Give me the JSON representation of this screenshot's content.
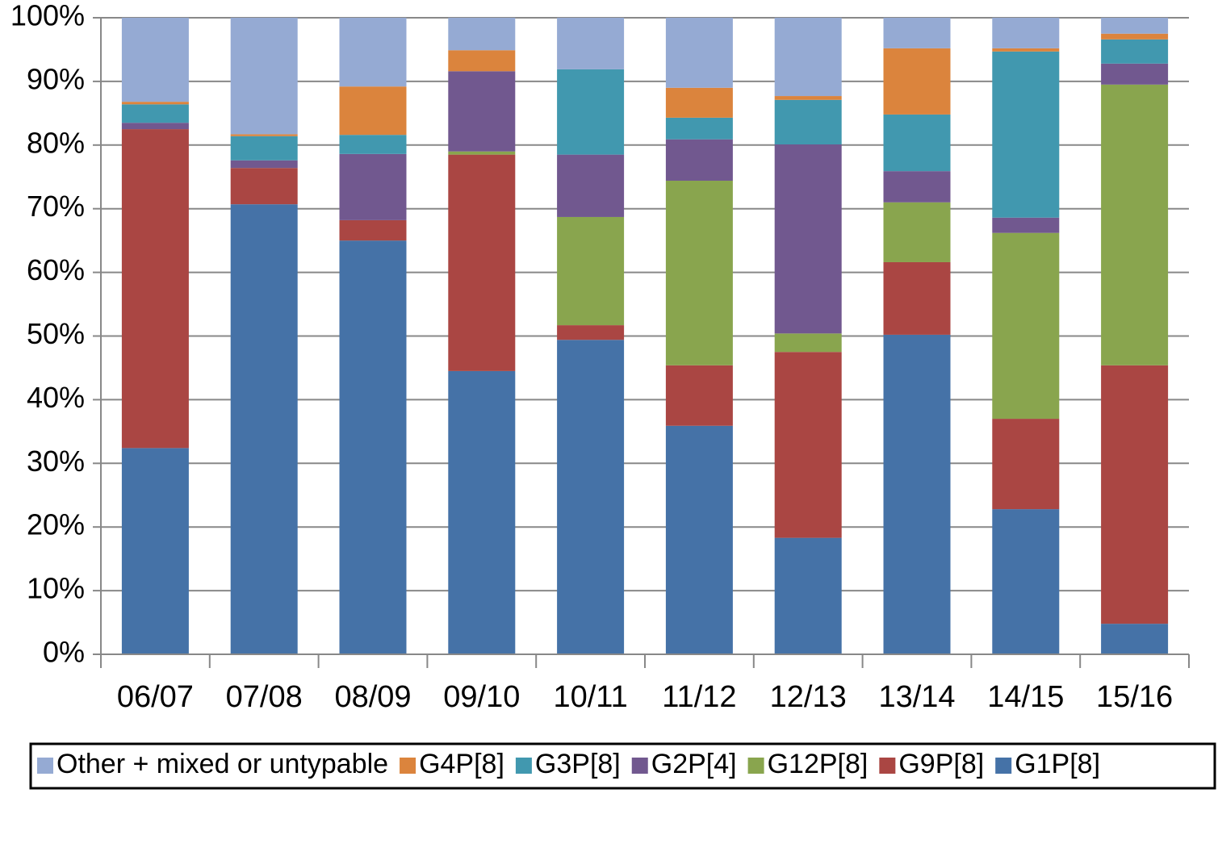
{
  "chart_data": {
    "type": "stacked_bar",
    "categories": [
      "06/07",
      "07/08",
      "08/09",
      "09/10",
      "10/11",
      "11/12",
      "12/13",
      "13/14",
      "14/15",
      "15/16"
    ],
    "series": [
      {
        "name": "Other + mixed or untypable",
        "color": "#95aad3",
        "values": [
          13.2,
          18.3,
          10.8,
          5.1,
          8.1,
          11.0,
          12.3,
          4.8,
          4.8,
          2.5
        ]
      },
      {
        "name": "G4P[8]",
        "color": "#db843d",
        "values": [
          0.4,
          0.3,
          7.6,
          3.3,
          0,
          4.7,
          0.6,
          10.4,
          0.5,
          0.9
        ]
      },
      {
        "name": "G3P[8]",
        "color": "#4198af",
        "values": [
          2.9,
          3.8,
          3.0,
          0,
          13.4,
          3.4,
          7.0,
          8.9,
          26.1,
          3.8
        ]
      },
      {
        "name": "G2P[4]",
        "color": "#71588f",
        "values": [
          1.0,
          1.2,
          10.4,
          12.6,
          9.8,
          6.5,
          29.7,
          4.9,
          2.4,
          3.3
        ]
      },
      {
        "name": "G12P[8]",
        "color": "#89a54e",
        "values": [
          0,
          0,
          0,
          0.5,
          17.0,
          29.0,
          2.9,
          9.4,
          29.2,
          44.1
        ]
      },
      {
        "name": "G9P[8]",
        "color": "#aa4643",
        "values": [
          50.1,
          5.7,
          3.2,
          34.0,
          2.3,
          9.5,
          29.2,
          11.4,
          14.2,
          40.6
        ]
      },
      {
        "name": "G1P[8]",
        "color": "#4572a7",
        "values": [
          32.4,
          70.7,
          65.0,
          44.5,
          49.4,
          35.9,
          18.3,
          50.2,
          22.8,
          4.8
        ]
      }
    ],
    "ylim": [
      0,
      100
    ],
    "yticks": [
      {
        "value": 0,
        "label": "0%"
      },
      {
        "value": 10,
        "label": "10%"
      },
      {
        "value": 20,
        "label": "20%"
      },
      {
        "value": 30,
        "label": "30%"
      },
      {
        "value": 40,
        "label": "40%"
      },
      {
        "value": 50,
        "label": "50%"
      },
      {
        "value": 60,
        "label": "60%"
      },
      {
        "value": 70,
        "label": "70%"
      },
      {
        "value": 80,
        "label": "80%"
      },
      {
        "value": 90,
        "label": "90%"
      },
      {
        "value": 100,
        "label": "100%"
      }
    ],
    "grid": true,
    "legend": "bottom"
  }
}
